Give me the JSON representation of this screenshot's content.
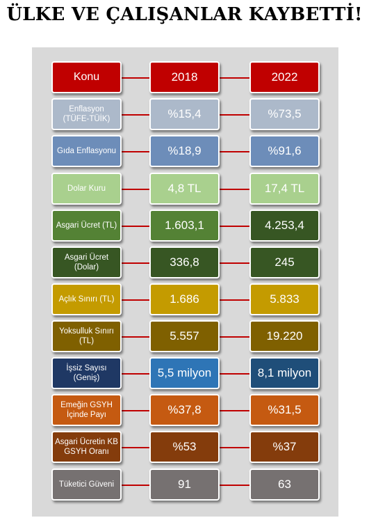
{
  "title": "ÜLKE VE ÇALIŞANLAR KAYBETTİ!",
  "header": {
    "label": "Konu",
    "col1": "2018",
    "col2": "2022",
    "color": "#c00000"
  },
  "rows": [
    {
      "label": "Enflasyon (TÜFE-TÜİK)",
      "v2018": "%15,4",
      "v2022": "%73,5",
      "color": "#acb9ca"
    },
    {
      "label": "Gıda Enflasyonu",
      "v2018": "%18,9",
      "v2022": "%91,6",
      "color": "#6d8db9"
    },
    {
      "label": "Dolar Kuru",
      "v2018": "4,8 TL",
      "v2022": "17,4 TL",
      "color": "#a9d08e"
    },
    {
      "label": "Asgari Ücret (TL)",
      "v2018": "1.603,1",
      "v2022": "4.253,4",
      "color": "#548235",
      "color2": "#375623"
    },
    {
      "label": "Asgari Ücret (Dolar)",
      "v2018": "336,8",
      "v2022": "245",
      "color": "#375623"
    },
    {
      "label": "Açlık Sınırı (TL)",
      "v2018": "1.686",
      "v2022": "5.833",
      "color": "#c49b00"
    },
    {
      "label": "Yoksulluk Sınırı (TL)",
      "v2018": "5.557",
      "v2022": "19.220",
      "color": "#7f6000"
    },
    {
      "label": "İşsiz Sayısı (Geniş)",
      "v2018": "5,5 milyon",
      "v2022": "8,1 milyon",
      "color": "#1f3864",
      "color1": "#2e75b6",
      "color2": "#1f4e79"
    },
    {
      "label": "Emeğin GSYH İçinde Payı",
      "v2018": "%37,8",
      "v2022": "%31,5",
      "color": "#c55a11"
    },
    {
      "label": "Asgari Ücretin KB GSYH Oranı",
      "v2018": "%53",
      "v2022": "%37",
      "color": "#843c0c"
    },
    {
      "label": "Tüketici Güveni",
      "v2018": "91",
      "v2022": "63",
      "color": "#767171"
    }
  ]
}
